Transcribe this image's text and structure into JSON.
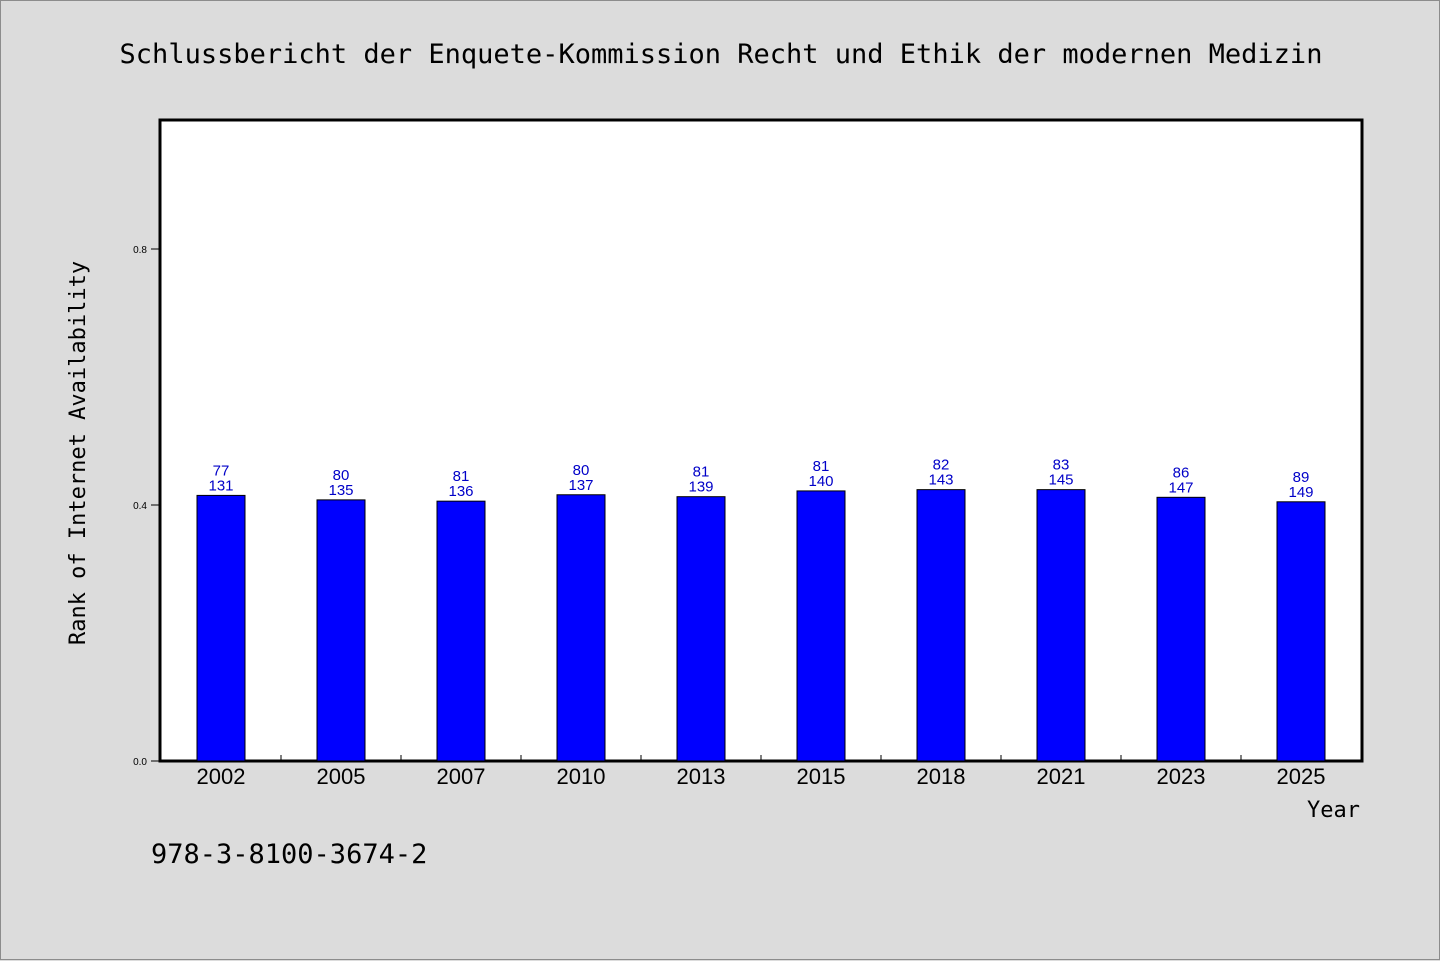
{
  "chart_data": {
    "type": "bar",
    "title": "Schlussbericht der Enquete-Kommission Recht und Ethik der modernen Medizin",
    "xlabel": "Year",
    "ylabel": "Rank of Internet Availability",
    "categories": [
      "2002",
      "2005",
      "2007",
      "2010",
      "2013",
      "2015",
      "2018",
      "2021",
      "2023",
      "2025"
    ],
    "values": [
      0.415,
      0.408,
      0.406,
      0.416,
      0.413,
      0.422,
      0.424,
      0.424,
      0.412,
      0.405
    ],
    "labels_top": [
      "77",
      "80",
      "81",
      "80",
      "81",
      "81",
      "82",
      "83",
      "86",
      "89"
    ],
    "labels_bottom": [
      "131",
      "135",
      "136",
      "137",
      "139",
      "140",
      "143",
      "145",
      "147",
      "149"
    ],
    "ylim": [
      0,
      1.0
    ],
    "yticks": [
      0.0,
      0.4,
      0.8
    ],
    "ytick_labels": [
      "0.0",
      "0.4",
      "0.8"
    ],
    "bar_color": "#0000ff",
    "label_color": "#0000c8",
    "grid": false
  },
  "footer": {
    "isbn": "978-3-8100-3674-2"
  }
}
